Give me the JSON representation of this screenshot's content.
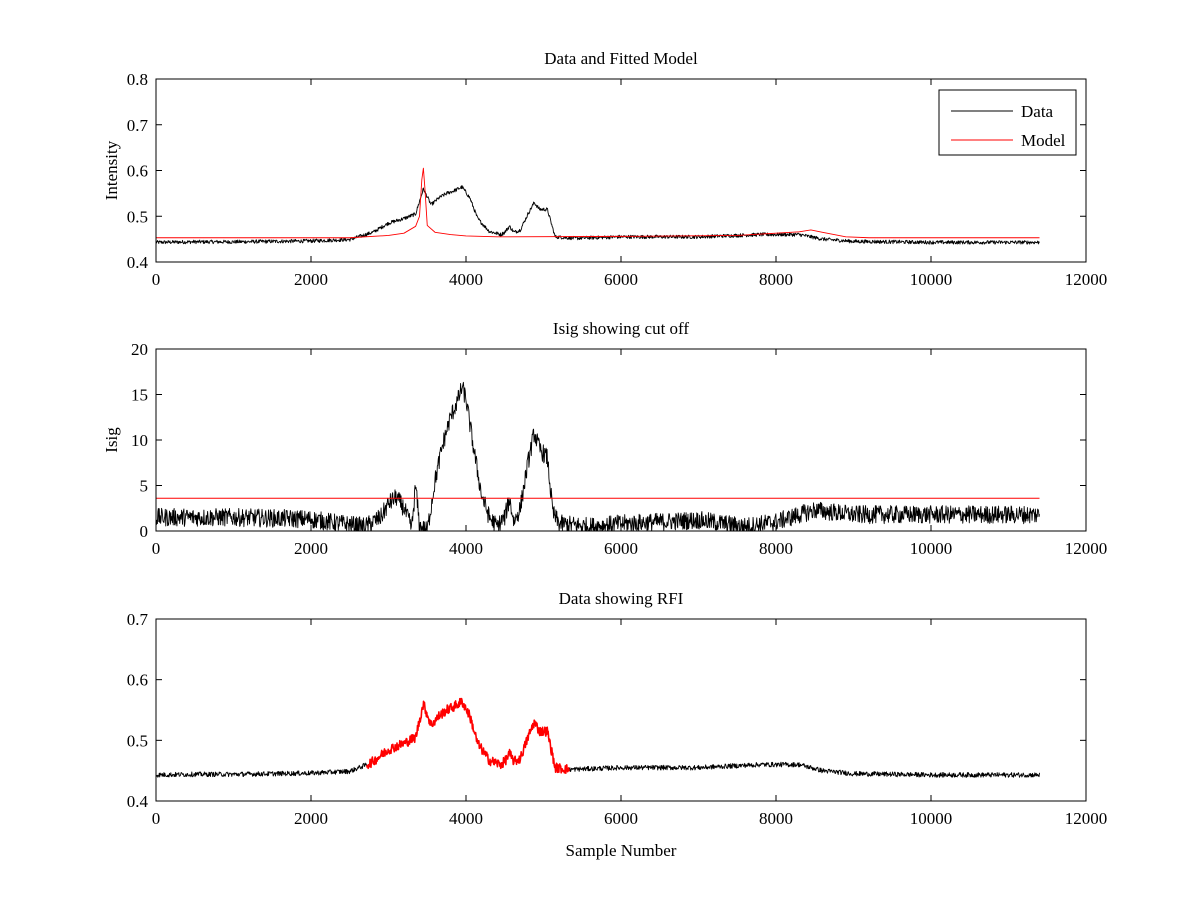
{
  "figure": {
    "background": "#ffffff"
  },
  "colors": {
    "data": "#000000",
    "model": "#ff0000",
    "threshold": "#ff0000",
    "rfi": "#ff0000",
    "axis": "#000000"
  },
  "chart_data": [
    {
      "type": "line",
      "title": "Data and Fitted Model",
      "xlabel": "",
      "ylabel": "Intensity",
      "xlim": [
        0,
        12000
      ],
      "ylim": [
        0.4,
        0.8
      ],
      "xticks": [
        0,
        2000,
        4000,
        6000,
        8000,
        10000,
        12000
      ],
      "yticks": [
        0.4,
        0.5,
        0.6,
        0.7,
        0.8
      ],
      "xtick_labels": [
        "0",
        "2000",
        "4000",
        "6000",
        "8000",
        "10000",
        "12000"
      ],
      "ytick_labels": [
        "0.4",
        "0.5",
        "0.6",
        "0.7",
        "0.8"
      ],
      "grid": false,
      "legend": {
        "position": "top-right",
        "entries": [
          "Data",
          "Model"
        ]
      },
      "series": [
        {
          "name": "Data",
          "color": "#000000",
          "noise": 0.004,
          "points": [
            [
              0,
              0.443
            ],
            [
              500,
              0.444
            ],
            [
              1000,
              0.444
            ],
            [
              1500,
              0.445
            ],
            [
              2000,
              0.446
            ],
            [
              2500,
              0.449
            ],
            [
              2800,
              0.465
            ],
            [
              3000,
              0.485
            ],
            [
              3200,
              0.495
            ],
            [
              3350,
              0.505
            ],
            [
              3450,
              0.56
            ],
            [
              3550,
              0.525
            ],
            [
              3650,
              0.54
            ],
            [
              3750,
              0.55
            ],
            [
              3850,
              0.556
            ],
            [
              3950,
              0.564
            ],
            [
              4050,
              0.54
            ],
            [
              4150,
              0.495
            ],
            [
              4300,
              0.467
            ],
            [
              4450,
              0.46
            ],
            [
              4500,
              0.465
            ],
            [
              4560,
              0.478
            ],
            [
              4620,
              0.465
            ],
            [
              4700,
              0.47
            ],
            [
              4800,
              0.505
            ],
            [
              4880,
              0.53
            ],
            [
              4950,
              0.515
            ],
            [
              5050,
              0.515
            ],
            [
              5150,
              0.455
            ],
            [
              5400,
              0.452
            ],
            [
              6000,
              0.455
            ],
            [
              7000,
              0.455
            ],
            [
              7800,
              0.46
            ],
            [
              8300,
              0.46
            ],
            [
              8600,
              0.45
            ],
            [
              9000,
              0.445
            ],
            [
              10000,
              0.443
            ],
            [
              11400,
              0.443
            ]
          ]
        },
        {
          "name": "Model",
          "color": "#ff0000",
          "noise": 0,
          "points": [
            [
              0,
              0.453
            ],
            [
              2500,
              0.453
            ],
            [
              3000,
              0.458
            ],
            [
              3200,
              0.463
            ],
            [
              3350,
              0.478
            ],
            [
              3400,
              0.5
            ],
            [
              3430,
              0.58
            ],
            [
              3450,
              0.605
            ],
            [
              3470,
              0.56
            ],
            [
              3500,
              0.48
            ],
            [
              3600,
              0.465
            ],
            [
              3800,
              0.46
            ],
            [
              4000,
              0.457
            ],
            [
              4400,
              0.455
            ],
            [
              6000,
              0.456
            ],
            [
              7500,
              0.458
            ],
            [
              8000,
              0.463
            ],
            [
              8300,
              0.466
            ],
            [
              8450,
              0.47
            ],
            [
              8600,
              0.465
            ],
            [
              8900,
              0.455
            ],
            [
              9200,
              0.453
            ],
            [
              11400,
              0.453
            ]
          ]
        }
      ]
    },
    {
      "type": "line",
      "title": "Isig showing cut off",
      "xlabel": "",
      "ylabel": "Isig",
      "xlim": [
        0,
        12000
      ],
      "ylim": [
        0,
        20
      ],
      "xticks": [
        0,
        2000,
        4000,
        6000,
        8000,
        10000,
        12000
      ],
      "yticks": [
        0,
        5,
        10,
        15,
        20
      ],
      "xtick_labels": [
        "0",
        "2000",
        "4000",
        "6000",
        "8000",
        "10000",
        "12000"
      ],
      "ytick_labels": [
        "0",
        "5",
        "10",
        "15",
        "20"
      ],
      "grid": false,
      "series": [
        {
          "name": "",
          "color": "#000000",
          "noise": 1.0,
          "points": [
            [
              0,
              1.5
            ],
            [
              1000,
              1.5
            ],
            [
              2000,
              1.3
            ],
            [
              2400,
              0.8
            ],
            [
              2700,
              0.5
            ],
            [
              2900,
              1.5
            ],
            [
              3000,
              3.0
            ],
            [
              3100,
              3.7
            ],
            [
              3200,
              2.5
            ],
            [
              3300,
              0.3
            ],
            [
              3350,
              5.0
            ],
            [
              3400,
              0.5
            ],
            [
              3500,
              0.0
            ],
            [
              3600,
              5.5
            ],
            [
              3700,
              9.5
            ],
            [
              3800,
              12.5
            ],
            [
              3900,
              14.5
            ],
            [
              3950,
              15.8
            ],
            [
              4000,
              14.5
            ],
            [
              4100,
              9.0
            ],
            [
              4200,
              4.0
            ],
            [
              4300,
              1.5
            ],
            [
              4400,
              0.5
            ],
            [
              4500,
              1.5
            ],
            [
              4560,
              3.5
            ],
            [
              4620,
              1.0
            ],
            [
              4700,
              2.5
            ],
            [
              4800,
              7.5
            ],
            [
              4880,
              10.8
            ],
            [
              4950,
              9.0
            ],
            [
              5050,
              8.0
            ],
            [
              5120,
              2.0
            ],
            [
              5200,
              0.8
            ],
            [
              5600,
              0.5
            ],
            [
              6000,
              0.8
            ],
            [
              7000,
              1.2
            ],
            [
              7600,
              0.5
            ],
            [
              8000,
              1.0
            ],
            [
              8500,
              2.3
            ],
            [
              9000,
              1.8
            ],
            [
              10000,
              1.8
            ],
            [
              11400,
              1.8
            ]
          ]
        },
        {
          "name": "",
          "color": "#ff0000",
          "noise": 0,
          "points": [
            [
              0,
              3.6
            ],
            [
              11400,
              3.6
            ]
          ]
        }
      ]
    },
    {
      "type": "line",
      "title": "Data showing RFI",
      "xlabel": "Sample Number",
      "ylabel": "",
      "xlim": [
        0,
        12000
      ],
      "ylim": [
        0.4,
        0.7
      ],
      "xticks": [
        0,
        2000,
        4000,
        6000,
        8000,
        10000,
        12000
      ],
      "yticks": [
        0.4,
        0.5,
        0.6,
        0.7
      ],
      "xtick_labels": [
        "0",
        "2000",
        "4000",
        "6000",
        "8000",
        "10000",
        "12000"
      ],
      "ytick_labels": [
        "0.4",
        "0.5",
        "0.6",
        "0.7"
      ],
      "grid": false,
      "series": [
        {
          "name": "",
          "color": "#000000",
          "noise": 0.004,
          "points": [
            [
              0,
              0.443
            ],
            [
              500,
              0.444
            ],
            [
              1000,
              0.444
            ],
            [
              1500,
              0.445
            ],
            [
              2000,
              0.446
            ],
            [
              2500,
              0.449
            ],
            [
              2720,
              0.46
            ]
          ]
        },
        {
          "name": "",
          "color": "#ff0000",
          "noise": 0.008,
          "points": [
            [
              2720,
              0.46
            ],
            [
              2800,
              0.465
            ],
            [
              3000,
              0.485
            ],
            [
              3200,
              0.495
            ],
            [
              3350,
              0.505
            ],
            [
              3450,
              0.56
            ],
            [
              3550,
              0.525
            ],
            [
              3650,
              0.54
            ],
            [
              3750,
              0.55
            ],
            [
              3850,
              0.556
            ],
            [
              3950,
              0.564
            ],
            [
              4050,
              0.54
            ],
            [
              4150,
              0.495
            ],
            [
              4300,
              0.467
            ],
            [
              4450,
              0.46
            ],
            [
              4500,
              0.465
            ],
            [
              4560,
              0.478
            ],
            [
              4620,
              0.465
            ],
            [
              4700,
              0.47
            ],
            [
              4800,
              0.505
            ],
            [
              4880,
              0.53
            ],
            [
              4950,
              0.515
            ],
            [
              5050,
              0.515
            ],
            [
              5150,
              0.455
            ],
            [
              5340,
              0.452
            ]
          ]
        },
        {
          "name": "",
          "color": "#000000",
          "noise": 0.004,
          "points": [
            [
              5340,
              0.452
            ],
            [
              6000,
              0.455
            ],
            [
              7000,
              0.455
            ],
            [
              7800,
              0.46
            ],
            [
              8300,
              0.46
            ],
            [
              8600,
              0.45
            ],
            [
              9000,
              0.445
            ],
            [
              10000,
              0.443
            ],
            [
              11400,
              0.443
            ]
          ]
        }
      ]
    }
  ]
}
